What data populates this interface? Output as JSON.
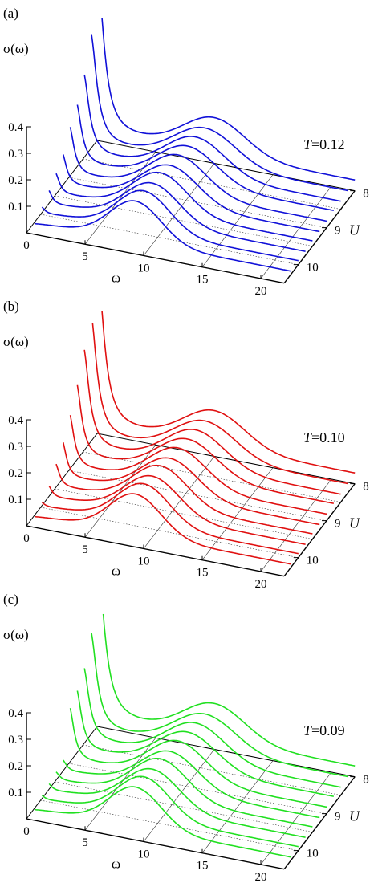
{
  "chart_data": [
    {
      "type": "line",
      "panel_label": "(a)",
      "temperature_label": "T=0.12",
      "color": "#1010d8",
      "ylabel": "σ(ω)",
      "xlabel": "ω",
      "depth_label": "U",
      "xlim": [
        0,
        22
      ],
      "ylim": [
        0,
        0.4
      ],
      "xticks": [
        "0",
        "5",
        "10",
        "15",
        "20"
      ],
      "yticks": [
        "0.1",
        "0.2",
        "0.3",
        "0.4"
      ],
      "depth_ticks": [
        "8",
        "9",
        "10"
      ],
      "series": [
        {
          "U": 8.0,
          "peak0": 0.62,
          "peak0_width": 0.7,
          "peak": 0.13,
          "peak_pos": 10.0,
          "peak_width": 2.6,
          "floor": 0.04
        },
        {
          "U": 8.25,
          "peak0": 0.45,
          "peak0_width": 0.65,
          "peak": 0.13,
          "peak_pos": 9.8,
          "peak_width": 2.6,
          "floor": 0.035
        },
        {
          "U": 8.5,
          "peak0": 0.33,
          "peak0_width": 0.6,
          "peak": 0.135,
          "peak_pos": 9.6,
          "peak_width": 2.5,
          "floor": 0.03
        },
        {
          "U": 8.75,
          "peak0": 0.25,
          "peak0_width": 0.55,
          "peak": 0.135,
          "peak_pos": 9.5,
          "peak_width": 2.5,
          "floor": 0.03
        },
        {
          "U": 9.0,
          "peak0": 0.2,
          "peak0_width": 0.5,
          "peak": 0.14,
          "peak_pos": 9.3,
          "peak_width": 2.4,
          "floor": 0.025
        },
        {
          "U": 9.25,
          "peak0": 0.13,
          "peak0_width": 0.45,
          "peak": 0.14,
          "peak_pos": 9.2,
          "peak_width": 2.4,
          "floor": 0.02
        },
        {
          "U": 9.5,
          "peak0": 0.09,
          "peak0_width": 0.45,
          "peak": 0.145,
          "peak_pos": 9.0,
          "peak_width": 2.3,
          "floor": 0.02
        },
        {
          "U": 9.75,
          "peak0": 0.06,
          "peak0_width": 0.4,
          "peak": 0.145,
          "peak_pos": 8.9,
          "peak_width": 2.3,
          "floor": 0.015
        },
        {
          "U": 10.0,
          "peak0": 0.03,
          "peak0_width": 0.4,
          "peak": 0.15,
          "peak_pos": 8.8,
          "peak_width": 2.2,
          "floor": 0.015
        },
        {
          "U": 10.25,
          "peak0": 0.0,
          "peak0_width": 0.4,
          "peak": 0.15,
          "peak_pos": 8.7,
          "peak_width": 2.2,
          "floor": 0.01
        }
      ]
    },
    {
      "type": "line",
      "panel_label": "(b)",
      "temperature_label": "T=0.10",
      "color": "#e01010",
      "ylabel": "σ(ω)",
      "xlabel": "ω",
      "depth_label": "U",
      "xlim": [
        0,
        22
      ],
      "ylim": [
        0,
        0.4
      ],
      "xticks": [
        "0",
        "5",
        "10",
        "15",
        "20"
      ],
      "yticks": [
        "0.1",
        "0.2",
        "0.3",
        "0.4"
      ],
      "depth_ticks": [
        "8",
        "9",
        "10"
      ],
      "series": [
        {
          "U": 8.0,
          "peak0": 0.62,
          "peak0_width": 0.7,
          "peak": 0.13,
          "peak_pos": 10.0,
          "peak_width": 2.6,
          "floor": 0.04
        },
        {
          "U": 8.25,
          "peak0": 0.5,
          "peak0_width": 0.65,
          "peak": 0.13,
          "peak_pos": 9.8,
          "peak_width": 2.6,
          "floor": 0.035
        },
        {
          "U": 8.5,
          "peak0": 0.4,
          "peak0_width": 0.6,
          "peak": 0.135,
          "peak_pos": 9.6,
          "peak_width": 2.5,
          "floor": 0.03
        },
        {
          "U": 8.75,
          "peak0": 0.3,
          "peak0_width": 0.55,
          "peak": 0.135,
          "peak_pos": 9.5,
          "peak_width": 2.5,
          "floor": 0.03
        },
        {
          "U": 9.0,
          "peak0": 0.22,
          "peak0_width": 0.5,
          "peak": 0.14,
          "peak_pos": 9.3,
          "peak_width": 2.4,
          "floor": 0.025
        },
        {
          "U": 9.25,
          "peak0": 0.15,
          "peak0_width": 0.45,
          "peak": 0.14,
          "peak_pos": 9.2,
          "peak_width": 2.4,
          "floor": 0.02
        },
        {
          "U": 9.5,
          "peak0": 0.1,
          "peak0_width": 0.45,
          "peak": 0.145,
          "peak_pos": 9.0,
          "peak_width": 2.3,
          "floor": 0.02
        },
        {
          "U": 9.75,
          "peak0": 0.05,
          "peak0_width": 0.4,
          "peak": 0.145,
          "peak_pos": 8.9,
          "peak_width": 2.3,
          "floor": 0.015
        },
        {
          "U": 10.0,
          "peak0": 0.02,
          "peak0_width": 0.4,
          "peak": 0.15,
          "peak_pos": 8.8,
          "peak_width": 2.2,
          "floor": 0.015
        },
        {
          "U": 10.25,
          "peak0": 0.0,
          "peak0_width": 0.4,
          "peak": 0.15,
          "peak_pos": 8.7,
          "peak_width": 2.2,
          "floor": 0.01
        }
      ]
    },
    {
      "type": "line",
      "panel_label": "(c)",
      "temperature_label": "T=0.09",
      "color": "#20e020",
      "ylabel": "σ(ω)",
      "xlabel": "ω",
      "depth_label": "U",
      "xlim": [
        0,
        22
      ],
      "ylim": [
        0,
        0.4
      ],
      "xticks": [
        "0",
        "5",
        "10",
        "15",
        "20"
      ],
      "yticks": [
        "0.1",
        "0.2",
        "0.3",
        "0.4"
      ],
      "depth_ticks": [
        "8",
        "9",
        "10"
      ],
      "series": [
        {
          "U": 8.0,
          "peak0": 0.62,
          "peak0_width": 0.75,
          "peak": 0.13,
          "peak_pos": 10.0,
          "peak_width": 2.6,
          "floor": 0.04
        },
        {
          "U": 8.25,
          "peak0": 0.4,
          "peak0_width": 0.65,
          "peak": 0.13,
          "peak_pos": 9.8,
          "peak_width": 2.6,
          "floor": 0.035
        },
        {
          "U": 8.5,
          "peak0": 0.3,
          "peak0_width": 0.6,
          "peak": 0.135,
          "peak_pos": 9.6,
          "peak_width": 2.5,
          "floor": 0.03
        },
        {
          "U": 8.75,
          "peak0": 0.25,
          "peak0_width": 0.55,
          "peak": 0.135,
          "peak_pos": 9.5,
          "peak_width": 2.5,
          "floor": 0.03
        },
        {
          "U": 9.0,
          "peak0": 0.22,
          "peak0_width": 0.5,
          "peak": 0.14,
          "peak_pos": 9.3,
          "peak_width": 2.4,
          "floor": 0.025
        },
        {
          "U": 9.25,
          "peak0": 0.05,
          "peak0_width": 0.45,
          "peak": 0.14,
          "peak_pos": 9.2,
          "peak_width": 2.4,
          "floor": 0.02
        },
        {
          "U": 9.5,
          "peak0": 0.04,
          "peak0_width": 0.45,
          "peak": 0.145,
          "peak_pos": 9.0,
          "peak_width": 2.3,
          "floor": 0.02
        },
        {
          "U": 9.75,
          "peak0": 0.03,
          "peak0_width": 0.4,
          "peak": 0.145,
          "peak_pos": 8.9,
          "peak_width": 2.3,
          "floor": 0.015
        },
        {
          "U": 10.0,
          "peak0": 0.02,
          "peak0_width": 0.4,
          "peak": 0.15,
          "peak_pos": 8.8,
          "peak_width": 2.2,
          "floor": 0.015
        },
        {
          "U": 10.25,
          "peak0": 0.0,
          "peak0_width": 0.4,
          "peak": 0.15,
          "peak_pos": 8.7,
          "peak_width": 2.2,
          "floor": 0.01
        }
      ]
    }
  ]
}
